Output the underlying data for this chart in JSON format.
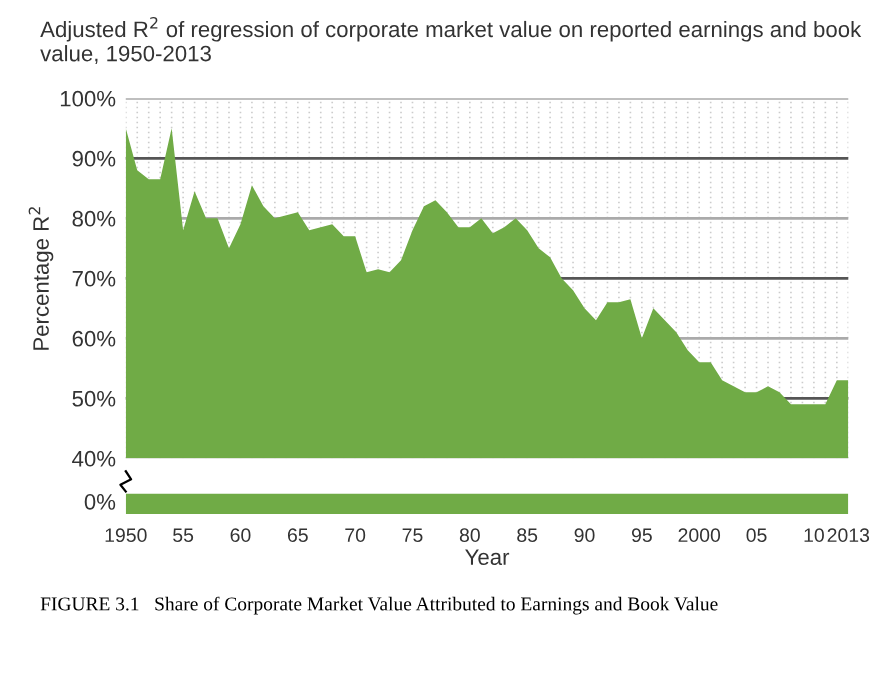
{
  "chart_data": {
    "type": "area",
    "title": "Adjusted R$^{2}$ of regression of corporate market value on reported earnings and book value, 1950-2013",
    "ylabel": "Percentage R$^{2}$",
    "xlabel": "Year",
    "x": [
      1950,
      1951,
      1952,
      1953,
      1954,
      1955,
      1956,
      1957,
      1958,
      1959,
      1960,
      1961,
      1962,
      1963,
      1964,
      1965,
      1966,
      1967,
      1968,
      1969,
      1970,
      1971,
      1972,
      1973,
      1974,
      1975,
      1976,
      1977,
      1978,
      1979,
      1980,
      1981,
      1982,
      1983,
      1984,
      1985,
      1986,
      1987,
      1988,
      1989,
      1990,
      1991,
      1992,
      1993,
      1994,
      1995,
      1996,
      1997,
      1998,
      1999,
      2000,
      2001,
      2002,
      2003,
      2004,
      2005,
      2006,
      2007,
      2008,
      2009,
      2010,
      2011,
      2012,
      2013
    ],
    "values": [
      95,
      88,
      86.5,
      86.5,
      95,
      78,
      84.5,
      80,
      80,
      75,
      79,
      85.5,
      82,
      80,
      80.5,
      81,
      78,
      78.5,
      79,
      77,
      77,
      71,
      71.5,
      71,
      73,
      78,
      82,
      83,
      81,
      78.5,
      78.5,
      80,
      77.5,
      78.5,
      80,
      78,
      75,
      73.5,
      70,
      68,
      65,
      63,
      66,
      66,
      66.5,
      60,
      65,
      63,
      61,
      58,
      56,
      56,
      53,
      52,
      51,
      51,
      52,
      51,
      49,
      49,
      49,
      49,
      53,
      53
    ],
    "color": "#70ab46",
    "xlim": [
      1950,
      2013
    ],
    "ylim": [
      40,
      100
    ],
    "xticks": [
      1950,
      {
        "value": 1955,
        "label": "55"
      },
      {
        "value": 1960,
        "label": "60"
      },
      {
        "value": 1965,
        "label": "65"
      },
      {
        "value": 1970,
        "label": "70"
      },
      {
        "value": 1975,
        "label": "75"
      },
      {
        "value": 1980,
        "label": "80"
      },
      {
        "value": 1985,
        "label": "85"
      },
      {
        "value": 1990,
        "label": "90"
      },
      {
        "value": 1995,
        "label": "95"
      },
      2000,
      {
        "value": 2005,
        "label": "05"
      },
      {
        "value": 2010,
        "label": "10"
      },
      2013
    ],
    "yticks": [
      {
        "value": 40,
        "label": "40%"
      },
      {
        "value": 50,
        "label": "50%"
      },
      {
        "value": 60,
        "label": "60%"
      },
      {
        "value": 70,
        "label": "70%"
      },
      {
        "value": 80,
        "label": "80%"
      },
      {
        "value": 90,
        "label": "90%"
      },
      {
        "value": 100,
        "label": "100%"
      }
    ],
    "grid": true,
    "annotations": [
      "0%",
      "FIGURE 3.1   Share of Corporate Market Value Attributed to Earnings and Book Value"
    ]
  }
}
